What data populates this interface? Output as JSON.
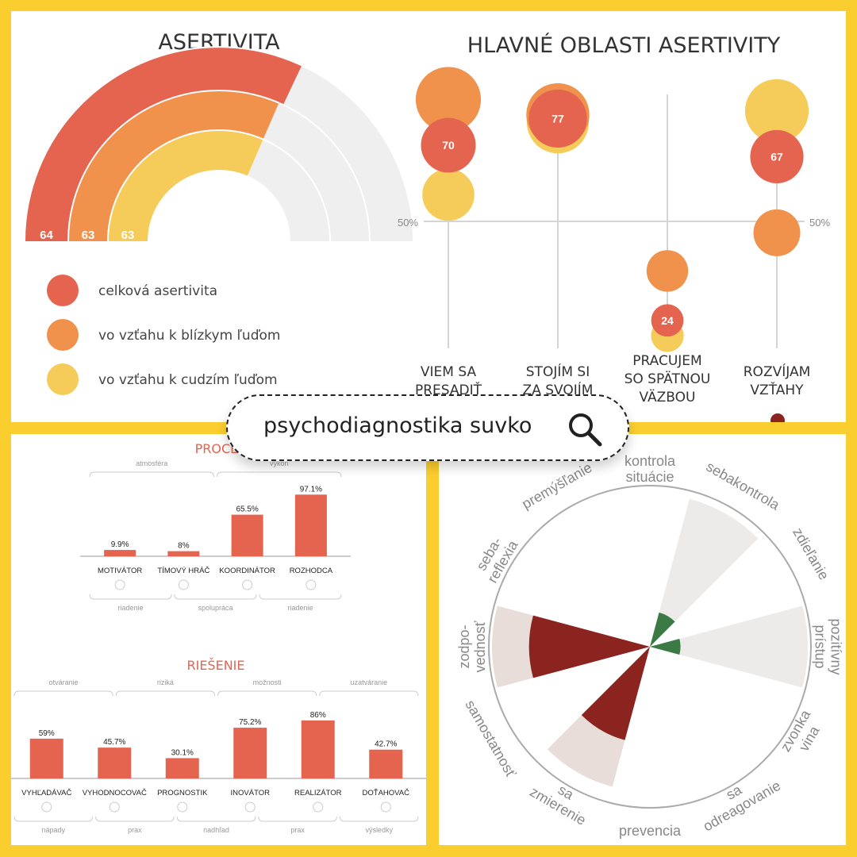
{
  "search": {
    "text": "psychodiagnostika suvko"
  },
  "chart_data": [
    {
      "type": "radial-bar",
      "title": "ASERTIVITA",
      "series": [
        {
          "name": "celková asertivita",
          "value": 64,
          "color": "#E4644F"
        },
        {
          "name": "vo vzťahu k blízkym ľuďom",
          "value": 63,
          "color": "#F0924C"
        },
        {
          "name": "vo vzťahu k cudzím ľuďom",
          "value": 63,
          "color": "#F5CC5A"
        }
      ],
      "range": [
        0,
        100
      ],
      "track_color": "#EFEFEF"
    },
    {
      "type": "bubble",
      "title": "HLAVNÉ OBLASTI ASERTIVITY",
      "reference_label": "50%",
      "reference_value": 50,
      "categories": [
        {
          "label_lines": [
            "VIEM SA",
            "PRESADIŤ"
          ],
          "total": 70,
          "close": 82,
          "strangers": 57
        },
        {
          "label_lines": [
            "STOJÍM SI",
            "ZA SVOJÍM"
          ],
          "total": 77,
          "close": 78,
          "strangers": 76
        },
        {
          "label_lines": [
            "PRACUJEM",
            "SO SPÄTNOU",
            "VÄZBOU"
          ],
          "total": 24,
          "close": 37,
          "strangers": 20
        },
        {
          "label_lines": [
            "ROZVÍJAM",
            "VZŤAHY"
          ],
          "total": 67,
          "close": 47,
          "strangers": 79
        }
      ],
      "colors": {
        "total": "#E4644F",
        "close": "#F0924C",
        "strangers": "#F5CC5A"
      }
    },
    {
      "type": "bar",
      "title": "PROCES",
      "unit": "%",
      "categories": [
        "MOTIVÁTOR",
        "TÍMOVÝ HRÁČ",
        "KOORDINÁTOR",
        "ROZHODCA"
      ],
      "values": [
        9.9,
        8,
        65.5,
        97.1
      ],
      "value_labels": [
        "9.9%",
        "8%",
        "65.5%",
        "97.1%"
      ],
      "top_groups": [
        "atmosféra",
        "výkon"
      ],
      "bottom_groups": [
        "riadenie",
        "spolupráca",
        "riadenie"
      ],
      "ylim": [
        0,
        100
      ],
      "bar_color": "#E4644F"
    },
    {
      "type": "bar",
      "title": "RIEŠENIE",
      "unit": "%",
      "categories": [
        "VYHĽADÁVAČ",
        "VYHODNOCOVAČ",
        "PROGNOSTIK",
        "INOVÁTOR",
        "REALIZÁTOR",
        "DOŤAHOVAČ"
      ],
      "values": [
        59,
        45.7,
        30.1,
        75.2,
        86,
        42.7
      ],
      "value_labels": [
        "59%",
        "45.7%",
        "30.1%",
        "75.2%",
        "86%",
        "42.7%"
      ],
      "top_groups": [
        "otváranie",
        "riziká",
        "možnosti",
        "uzatváranie"
      ],
      "bottom_groups": [
        "nápady",
        "prax",
        "nadhľad",
        "prax",
        "výsledky"
      ],
      "ylim": [
        0,
        100
      ],
      "bar_color": "#E4644F"
    },
    {
      "type": "polar-area",
      "labels": [
        [
          "kontrola",
          "situácie"
        ],
        [
          "sebakontrola"
        ],
        [
          "zdieľanie"
        ],
        [
          "pozitívny",
          "prístup"
        ],
        [
          "vina",
          "zvonka"
        ],
        [
          "odreagovanie",
          "sa"
        ],
        [
          "prevencia"
        ],
        [
          "zmierenie",
          "sa"
        ],
        [
          "samostatnosť"
        ],
        [
          "zodpo-",
          "vednosť"
        ],
        [
          "seba-",
          "reflexia"
        ],
        [
          "premýšľanie"
        ]
      ],
      "values": [
        0,
        0,
        0,
        0.19,
        0,
        0,
        0,
        0.6,
        0,
        0.75,
        0,
        0
      ],
      "background_values": [
        0,
        0.95,
        0,
        0.98,
        0,
        0,
        0,
        0.9,
        0,
        0.98,
        0,
        0
      ],
      "inner_values": [
        0,
        0.22,
        0,
        0,
        0,
        0,
        0,
        0,
        0,
        0,
        0,
        0
      ],
      "inner_colors": [
        "",
        "#3B7A45",
        "",
        "",
        "",
        "",
        "",
        "",
        "",
        "",
        "",
        ""
      ],
      "value_colors": [
        "",
        "",
        "",
        "#3B7A45",
        "",
        "",
        "",
        "#8B231E",
        "",
        "#8B231E",
        "",
        ""
      ],
      "background_colors": [
        "",
        "#EDEBEA",
        "",
        "#EDEBEA",
        "",
        "",
        "",
        "#E9DDD9",
        "",
        "#E9DDD9",
        "",
        ""
      ]
    }
  ]
}
